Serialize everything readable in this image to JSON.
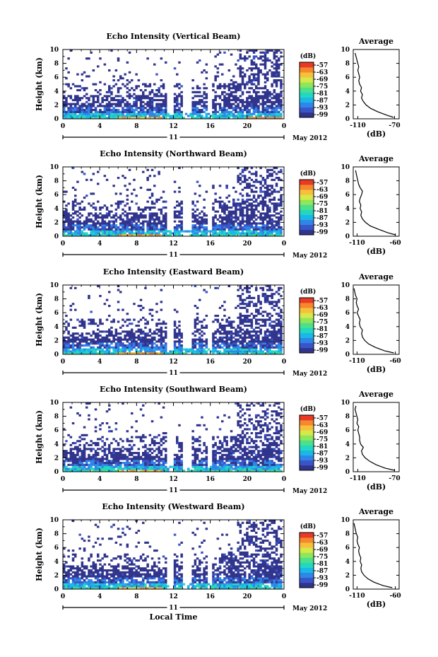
{
  "chart_data": [
    {
      "type": "heatmap",
      "title": "Echo Intensity (Vertical Beam)",
      "ylabel": "Height (km)",
      "x_ticks": [
        "0",
        "4",
        "8",
        "12",
        "16",
        "20",
        "0"
      ],
      "y_ticks": [
        "0",
        "2",
        "4",
        "6",
        "8",
        "10"
      ],
      "xlim": [
        0,
        24
      ],
      "ylim": [
        0,
        10
      ],
      "date_day": "11",
      "date_month": "May 2012",
      "colorbar": {
        "unit": "(dB)",
        "ticks": [
          "-57",
          "-63",
          "-69",
          "-75",
          "-81",
          "-87",
          "-93",
          "-99"
        ]
      },
      "average": {
        "title": "Average",
        "xlabel": "(dB)",
        "x_ticks": [
          "-110",
          "-70"
        ],
        "y_ticks": [
          "0",
          "2",
          "4",
          "6",
          "8",
          "10"
        ],
        "xlim": [
          -115,
          -65
        ],
        "heights": [
          0.2,
          0.5,
          1,
          1.5,
          2,
          2.5,
          3,
          3.5,
          4,
          4.5,
          5,
          5.5,
          6,
          6.5,
          7,
          7.5,
          8,
          8.5,
          9,
          9.5
        ],
        "values": [
          -71,
          -78,
          -88,
          -96,
          -101,
          -104,
          -106,
          -105,
          -107,
          -106,
          -108,
          -109,
          -108,
          -109,
          -110,
          -109,
          -110,
          -111,
          -112,
          -113
        ]
      }
    },
    {
      "type": "heatmap",
      "title": "Echo Intensity (Northward Beam)",
      "ylabel": "Height (km)",
      "x_ticks": [
        "0",
        "4",
        "8",
        "12",
        "16",
        "20",
        "0"
      ],
      "y_ticks": [
        "0",
        "2",
        "4",
        "6",
        "8",
        "10"
      ],
      "xlim": [
        0,
        24
      ],
      "ylim": [
        0,
        10
      ],
      "date_day": "11",
      "date_month": "May 2012",
      "colorbar": {
        "unit": "(dB)",
        "ticks": [
          "-57",
          "-63",
          "-69",
          "-75",
          "-81",
          "-87",
          "-93",
          "-99"
        ]
      },
      "average": {
        "title": "Average",
        "xlabel": "(dB)",
        "x_ticks": [
          "-110",
          "-60"
        ],
        "y_ticks": [
          "0",
          "2",
          "4",
          "6",
          "8",
          "10"
        ],
        "xlim": [
          -115,
          -55
        ],
        "heights": [
          0.2,
          0.5,
          1,
          1.5,
          2,
          2.5,
          3,
          3.5,
          4,
          4.5,
          5,
          5.5,
          6,
          6.5,
          7,
          7.5,
          8,
          8.5,
          9,
          9.5
        ],
        "values": [
          -60,
          -70,
          -82,
          -93,
          -99,
          -103,
          -105,
          -104,
          -106,
          -105,
          -107,
          -106,
          -104,
          -103,
          -106,
          -108,
          -109,
          -110,
          -111,
          -112
        ]
      }
    },
    {
      "type": "heatmap",
      "title": "Echo Intensity (Eastward Beam)",
      "ylabel": "Height (km)",
      "x_ticks": [
        "0",
        "4",
        "8",
        "12",
        "16",
        "20",
        "0"
      ],
      "y_ticks": [
        "0",
        "2",
        "4",
        "6",
        "8",
        "10"
      ],
      "xlim": [
        0,
        24
      ],
      "ylim": [
        0,
        10
      ],
      "date_day": "11",
      "date_month": "May 2012",
      "colorbar": {
        "unit": "(dB)",
        "ticks": [
          "-57",
          "-63",
          "-69",
          "-75",
          "-81",
          "-87",
          "-93",
          "-99"
        ]
      },
      "average": {
        "title": "Average",
        "xlabel": "(dB)",
        "x_ticks": [
          "-110",
          "-60"
        ],
        "y_ticks": [
          "0",
          "2",
          "4",
          "6",
          "8",
          "10"
        ],
        "xlim": [
          -115,
          -55
        ],
        "heights": [
          0.2,
          0.5,
          1,
          1.5,
          2,
          2.5,
          3,
          3.5,
          4,
          4.5,
          5,
          5.5,
          6,
          6.5,
          7,
          7.5,
          8,
          8.5,
          9,
          9.5
        ],
        "values": [
          -62,
          -74,
          -86,
          -95,
          -100,
          -103,
          -104,
          -103,
          -106,
          -107,
          -106,
          -108,
          -110,
          -108,
          -110,
          -111,
          -110,
          -112,
          -113,
          -114
        ]
      }
    },
    {
      "type": "heatmap",
      "title": "Echo Intensity (Southward Beam)",
      "ylabel": "Height (km)",
      "x_ticks": [
        "0",
        "4",
        "8",
        "12",
        "16",
        "20",
        "0"
      ],
      "y_ticks": [
        "0",
        "2",
        "4",
        "6",
        "8",
        "10"
      ],
      "xlim": [
        0,
        24
      ],
      "ylim": [
        0,
        10
      ],
      "date_day": "11",
      "date_month": "May 2012",
      "colorbar": {
        "unit": "(dB)",
        "ticks": [
          "-57",
          "-63",
          "-69",
          "-75",
          "-81",
          "-87",
          "-93",
          "-99"
        ]
      },
      "average": {
        "title": "Average",
        "xlabel": "(dB)",
        "x_ticks": [
          "-110",
          "-70"
        ],
        "y_ticks": [
          "0",
          "2",
          "4",
          "6",
          "8",
          "10"
        ],
        "xlim": [
          -115,
          -65
        ],
        "heights": [
          0.2,
          0.5,
          1,
          1.5,
          2,
          2.5,
          3,
          3.5,
          4,
          4.5,
          5,
          5.5,
          6,
          6.5,
          7,
          7.5,
          8,
          8.5,
          9,
          9.5
        ],
        "values": [
          -70,
          -80,
          -90,
          -97,
          -102,
          -105,
          -106,
          -104,
          -107,
          -108,
          -108,
          -109,
          -110,
          -109,
          -111,
          -110,
          -111,
          -112,
          -113,
          -112
        ]
      }
    },
    {
      "type": "heatmap",
      "title": "Echo Intensity (Westward Beam)",
      "ylabel": "Height (km)",
      "xlabel": "Local Time",
      "x_ticks": [
        "0",
        "4",
        "8",
        "12",
        "16",
        "20",
        "0"
      ],
      "y_ticks": [
        "0",
        "2",
        "4",
        "6",
        "8",
        "10"
      ],
      "xlim": [
        0,
        24
      ],
      "ylim": [
        0,
        10
      ],
      "date_day": "11",
      "date_month": "May 2012",
      "colorbar": {
        "unit": "(dB)",
        "ticks": [
          "-57",
          "-63",
          "-69",
          "-75",
          "-81",
          "-87",
          "-93",
          "-99"
        ]
      },
      "average": {
        "title": "Average",
        "xlabel": "(dB)",
        "x_ticks": [
          "-110",
          "-60"
        ],
        "y_ticks": [
          "0",
          "2",
          "4",
          "6",
          "8",
          "10"
        ],
        "xlim": [
          -115,
          -55
        ],
        "heights": [
          0.2,
          0.5,
          1,
          1.5,
          2,
          2.5,
          3,
          3.5,
          4,
          4.5,
          5,
          5.5,
          6,
          6.5,
          7,
          7.5,
          8,
          8.5,
          9,
          9.5
        ],
        "values": [
          -64,
          -76,
          -88,
          -96,
          -101,
          -104,
          -105,
          -104,
          -106,
          -105,
          -107,
          -108,
          -107,
          -109,
          -110,
          -109,
          -111,
          -112,
          -113,
          -114
        ]
      }
    }
  ],
  "colormap": [
    "#30348c",
    "#3a55c8",
    "#2f86e8",
    "#1ab8e6",
    "#23d7c0",
    "#4ce08a",
    "#8ee65a",
    "#d6e84a",
    "#f7c03c",
    "#f5872c",
    "#e83a24"
  ],
  "missing_intervals_hours": [
    [
      11.4,
      12.1
    ],
    [
      13.2,
      14.0
    ],
    [
      15.8,
      16.3
    ]
  ]
}
